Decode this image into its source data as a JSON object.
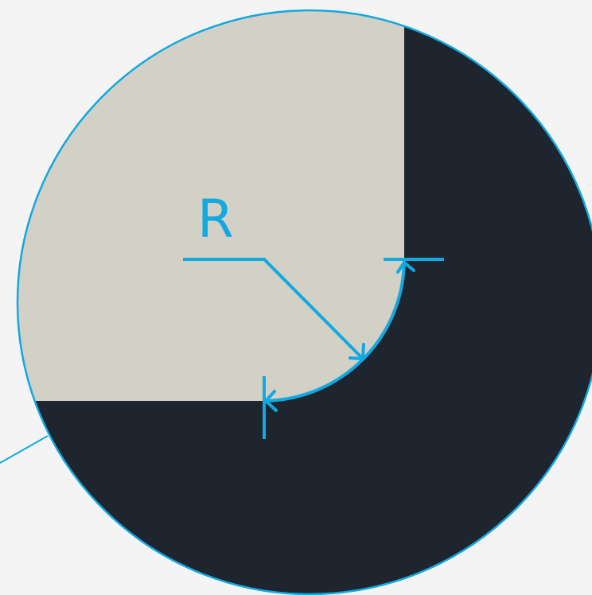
{
  "diagram": {
    "label": "R",
    "colors": {
      "background": "#f4f4f4",
      "accent": "#12a8e0",
      "light_region": "#d3d0c6",
      "dark_region": "#1e252e"
    },
    "elements": [
      "magnifier-circle",
      "pointer-line",
      "fillet-arc",
      "radius-leader",
      "radius-label"
    ]
  }
}
